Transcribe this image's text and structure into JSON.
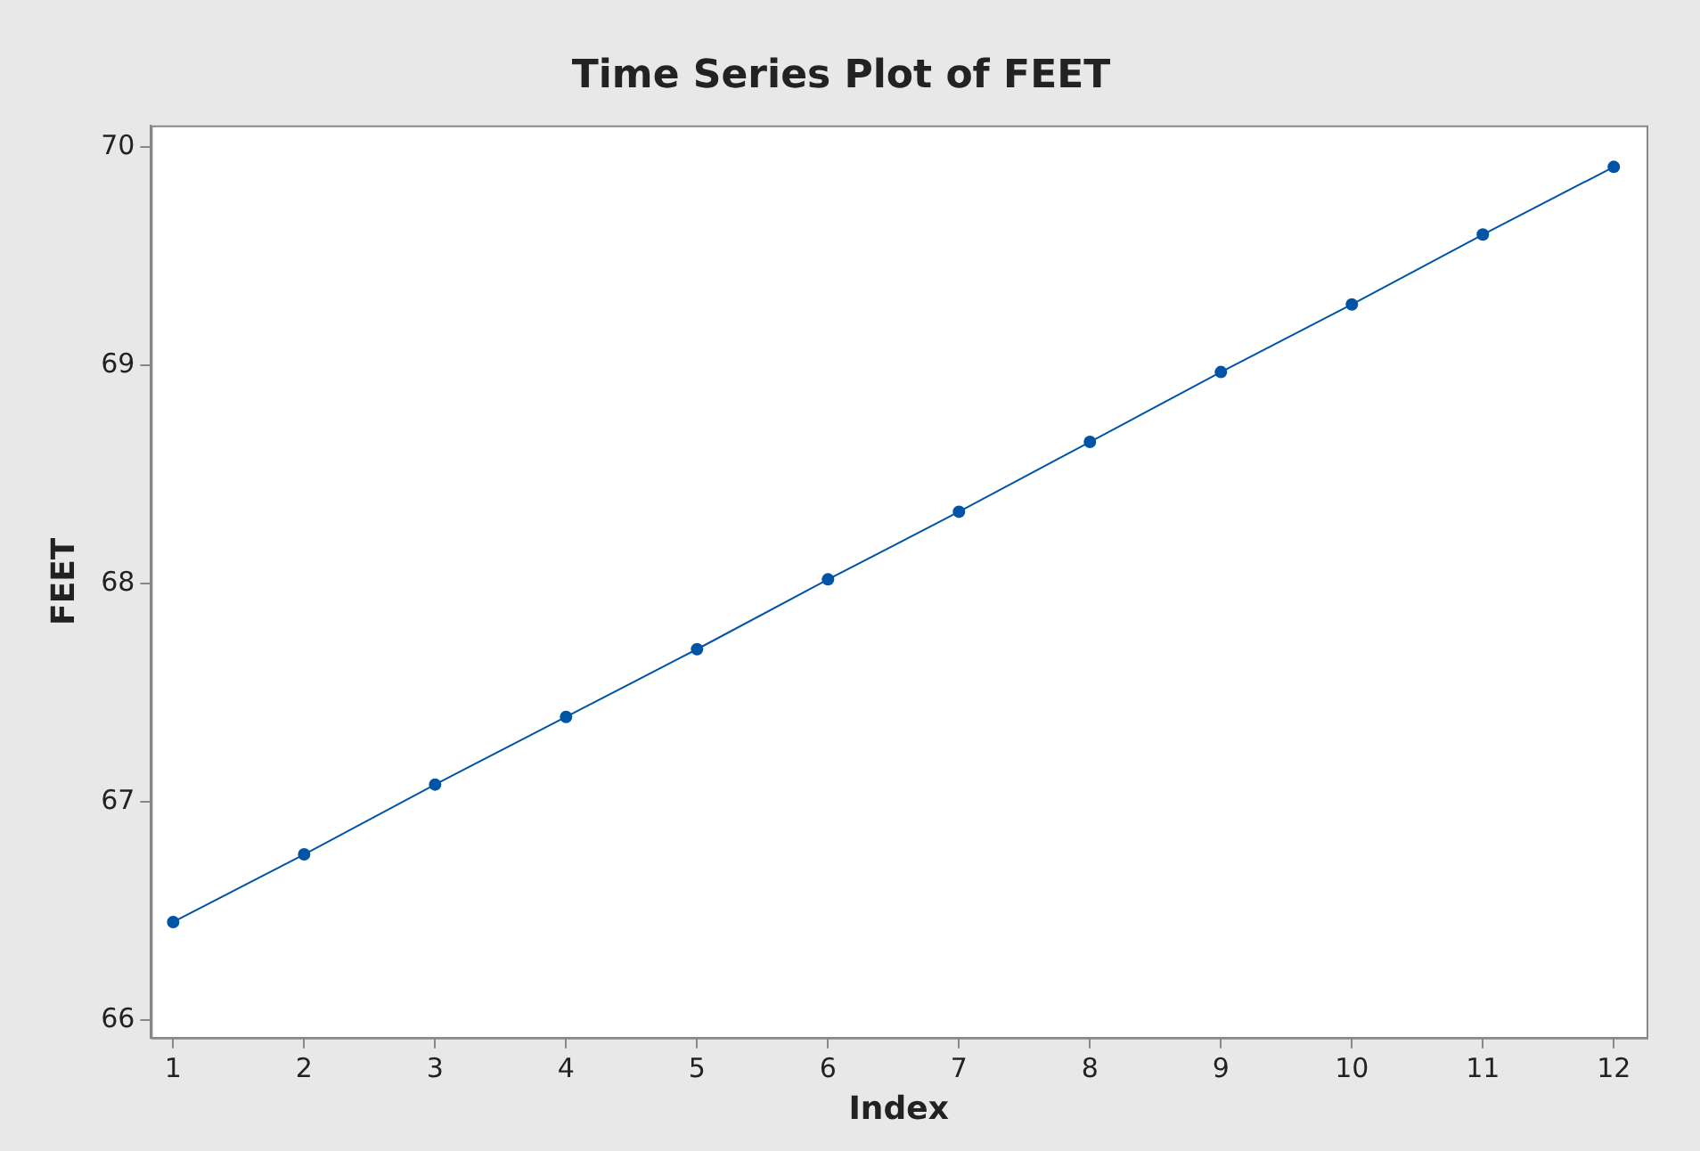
{
  "chart_data": {
    "type": "line",
    "title": "Time Series Plot of FEET",
    "xlabel": "Index",
    "ylabel": "FEET",
    "x": [
      1,
      2,
      3,
      4,
      5,
      6,
      7,
      8,
      9,
      10,
      11,
      12
    ],
    "series": [
      {
        "color": "#0054a6",
        "values": [
          66.45,
          66.76,
          67.08,
          67.39,
          67.7,
          68.02,
          68.33,
          68.65,
          68.97,
          69.28,
          69.6,
          69.91
        ]
      }
    ],
    "xlim": [
      0.83,
      12.25
    ],
    "xticks": [
      1,
      2,
      3,
      4,
      5,
      6,
      7,
      8,
      9,
      10,
      11,
      12
    ],
    "ylim": [
      65.92,
      70.1
    ],
    "yticks": [
      66,
      67,
      68,
      69,
      70
    ],
    "grid": false,
    "legend": false,
    "marker": "circle",
    "line_style": "solid"
  }
}
